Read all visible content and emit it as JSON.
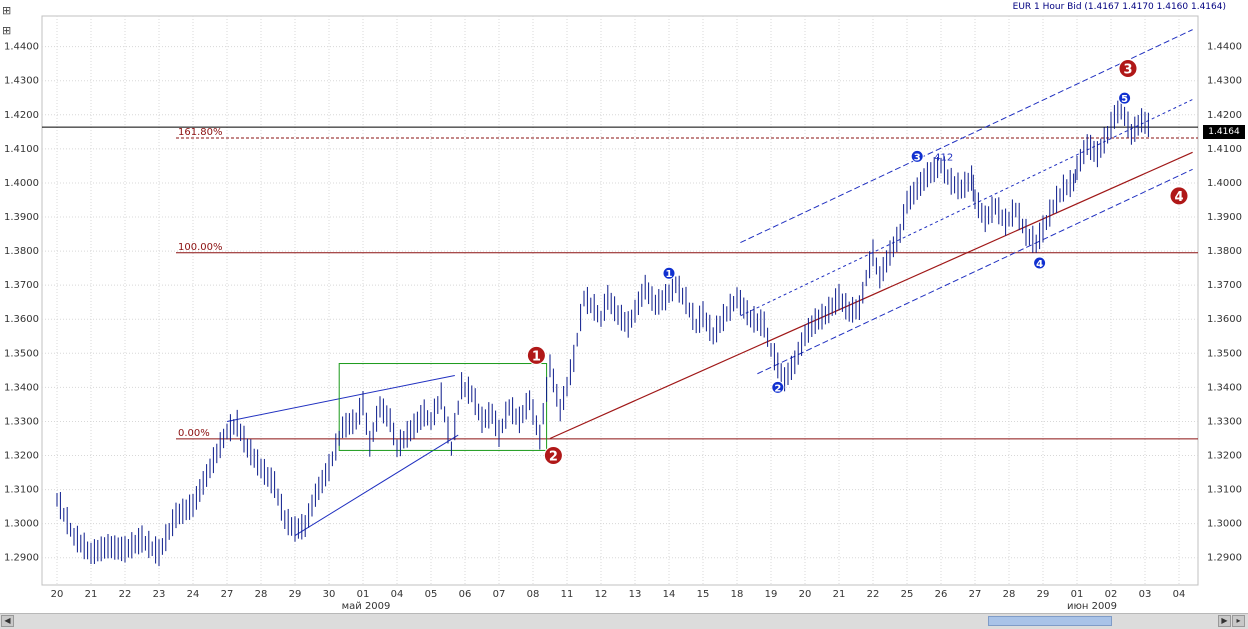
{
  "header": {
    "title": "EUR 1 Hour Bid (1.4167 1.4170 1.4160 1.4164)"
  },
  "icons": {
    "left": "chart-tool-icon",
    "top": "chart-tool-icon"
  },
  "current_price": "1.4164",
  "chart_data": {
    "type": "line",
    "title": "EUR 1 Hour Bid (1.4167 1.4170 1.4160 1.4164)",
    "xlabel": "",
    "ylabel": "",
    "ylim": [
      1.282,
      1.449
    ],
    "grid": true,
    "y_ticks": [
      "1.2900",
      "1.3000",
      "1.3100",
      "1.3200",
      "1.3300",
      "1.3400",
      "1.3500",
      "1.3600",
      "1.3700",
      "1.3800",
      "1.3900",
      "1.4000",
      "1.4100",
      "1.4200",
      "1.4300",
      "1.4400"
    ],
    "x_ticks": [
      "20",
      "21",
      "22",
      "23",
      "24",
      "27",
      "28",
      "29",
      "30",
      "01",
      "04",
      "05",
      "06",
      "07",
      "08",
      "11",
      "12",
      "13",
      "14",
      "15",
      "18",
      "19",
      "20",
      "21",
      "22",
      "25",
      "26",
      "27",
      "28",
      "29",
      "01",
      "02",
      "03",
      "04"
    ],
    "month_labels": [
      {
        "label": "май 2009",
        "at": "01"
      },
      {
        "label": "июн 2009",
        "at": "01b"
      }
    ],
    "series": [
      {
        "values": [
          [
            0,
            1.307
          ],
          [
            0.5,
            1.296
          ],
          [
            1,
            1.291
          ],
          [
            1.5,
            1.293
          ],
          [
            2,
            1.292
          ],
          [
            2.5,
            1.295
          ],
          [
            3,
            1.291
          ],
          [
            3.5,
            1.302
          ],
          [
            4,
            1.305
          ],
          [
            4.5,
            1.316
          ],
          [
            5,
            1.327
          ],
          [
            5.3,
            1.329
          ],
          [
            5.6,
            1.322
          ],
          [
            6,
            1.316
          ],
          [
            6.4,
            1.311
          ],
          [
            6.7,
            1.301
          ],
          [
            7,
            1.298
          ],
          [
            7.3,
            1.299
          ],
          [
            7.6,
            1.308
          ],
          [
            8,
            1.316
          ],
          [
            8.4,
            1.328
          ],
          [
            8.8,
            1.33
          ],
          [
            9,
            1.335
          ],
          [
            9.2,
            1.323
          ],
          [
            9.5,
            1.334
          ],
          [
            9.8,
            1.33
          ],
          [
            10,
            1.322
          ],
          [
            10.4,
            1.327
          ],
          [
            10.8,
            1.332
          ],
          [
            11,
            1.33
          ],
          [
            11.3,
            1.337
          ],
          [
            11.6,
            1.322
          ],
          [
            11.9,
            1.34
          ],
          [
            12.2,
            1.338
          ],
          [
            12.5,
            1.33
          ],
          [
            12.8,
            1.332
          ],
          [
            13,
            1.326
          ],
          [
            13.3,
            1.334
          ],
          [
            13.6,
            1.33
          ],
          [
            13.9,
            1.336
          ],
          [
            14.2,
            1.325
          ],
          [
            14.5,
            1.346
          ],
          [
            14.8,
            1.333
          ],
          [
            15,
            1.34
          ],
          [
            15.2,
            1.348
          ],
          [
            15.5,
            1.366
          ],
          [
            15.8,
            1.363
          ],
          [
            16,
            1.36
          ],
          [
            16.2,
            1.366
          ],
          [
            16.5,
            1.361
          ],
          [
            16.8,
            1.358
          ],
          [
            17,
            1.362
          ],
          [
            17.3,
            1.369
          ],
          [
            17.6,
            1.364
          ],
          [
            17.9,
            1.366
          ],
          [
            18.2,
            1.37
          ],
          [
            18.5,
            1.365
          ],
          [
            18.8,
            1.358
          ],
          [
            19,
            1.361
          ],
          [
            19.3,
            1.355
          ],
          [
            19.6,
            1.36
          ],
          [
            20,
            1.366
          ],
          [
            20.4,
            1.36
          ],
          [
            20.8,
            1.358
          ],
          [
            21,
            1.351
          ],
          [
            21.2,
            1.346
          ],
          [
            21.4,
            1.342
          ],
          [
            21.7,
            1.347
          ],
          [
            22,
            1.355
          ],
          [
            22.3,
            1.359
          ],
          [
            22.6,
            1.361
          ],
          [
            23,
            1.366
          ],
          [
            23.3,
            1.362
          ],
          [
            23.6,
            1.363
          ],
          [
            23.8,
            1.372
          ],
          [
            24,
            1.379
          ],
          [
            24.2,
            1.372
          ],
          [
            24.5,
            1.379
          ],
          [
            24.8,
            1.385
          ],
          [
            25,
            1.394
          ],
          [
            25.3,
            1.398
          ],
          [
            25.6,
            1.402
          ],
          [
            26,
            1.405
          ],
          [
            26.3,
            1.4
          ],
          [
            26.6,
            1.398
          ],
          [
            26.9,
            1.401
          ],
          [
            27,
            1.395
          ],
          [
            27.3,
            1.389
          ],
          [
            27.6,
            1.393
          ],
          [
            27.9,
            1.388
          ],
          [
            28.2,
            1.392
          ],
          [
            28.5,
            1.385
          ],
          [
            28.8,
            1.382
          ],
          [
            29,
            1.386
          ],
          [
            29.3,
            1.393
          ],
          [
            29.6,
            1.398
          ],
          [
            29.9,
            1.4
          ],
          [
            30,
            1.404
          ],
          [
            30.3,
            1.411
          ],
          [
            30.6,
            1.408
          ],
          [
            30.9,
            1.414
          ],
          [
            31.1,
            1.419
          ],
          [
            31.3,
            1.422
          ],
          [
            31.6,
            1.414
          ],
          [
            31.9,
            1.418
          ],
          [
            32.2,
            1.416
          ]
        ]
      }
    ],
    "levels": [
      {
        "label": "161.80%",
        "value": 1.4132
      },
      {
        "label": "100.00%",
        "value": 1.3795
      },
      {
        "label": "0.00%",
        "value": 1.3249
      }
    ],
    "current_line": 1.4164,
    "wave_markers": [
      {
        "label": "1",
        "x": 14.1,
        "y": 1.3494,
        "color": "#b01818",
        "size": "large"
      },
      {
        "label": "2",
        "x": 14.6,
        "y": 1.32,
        "color": "#b01818",
        "size": "large"
      },
      {
        "label": "3",
        "x": 31.5,
        "y": 1.4336,
        "color": "#b01818",
        "size": "large"
      },
      {
        "label": "4",
        "x": 33.0,
        "y": 1.3962,
        "color": "#b01818",
        "size": "large"
      },
      {
        "label": "1",
        "x": 18.0,
        "y": 1.3735,
        "color": "#1030d0",
        "size": "small"
      },
      {
        "label": "2",
        "x": 21.2,
        "y": 1.34,
        "color": "#1030d0",
        "size": "small"
      },
      {
        "label": "3",
        "x": 25.3,
        "y": 1.4078,
        "color": "#1030d0",
        "size": "small"
      },
      {
        "label": "4",
        "x": 28.9,
        "y": 1.3765,
        "color": "#1030d0",
        "size": "small"
      },
      {
        "label": "5",
        "x": 31.4,
        "y": 1.4249,
        "color": "#1030d0",
        "size": "small"
      }
    ],
    "annotations": [
      {
        "text": "412",
        "x": 25.8,
        "y": 1.4066
      }
    ]
  }
}
